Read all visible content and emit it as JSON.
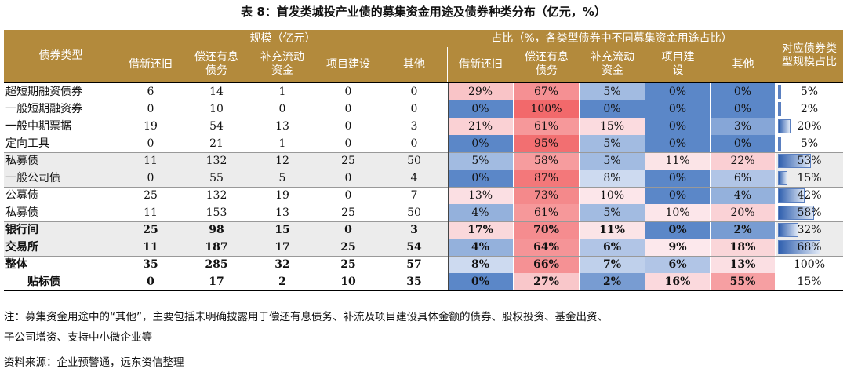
{
  "title": "表 8：首发类城投产业债的募集资金用途及债券种类分布（亿元，%）",
  "headers": {
    "type": "债券类型",
    "scale_group": "规模（亿元）",
    "pct_group": "占比（%，各类型债券中不同募集资金用途占比）",
    "share": "对应债券类型规模占比",
    "cols": [
      "借新还旧",
      "偿还有息债务",
      "补充流动资金",
      "项目建设",
      "其他"
    ]
  },
  "rows": [
    {
      "type": "超短期融资债券",
      "scale": [
        "6",
        "14",
        "1",
        "0",
        "0"
      ],
      "pct": [
        "29%",
        "67%",
        "5%",
        "0%",
        "0%"
      ],
      "pct_values": [
        29,
        67,
        5,
        0,
        0
      ],
      "share": "5%",
      "share_value": 5,
      "bold": false,
      "shade": false
    },
    {
      "type": "一般短期融资券",
      "scale": [
        "0",
        "10",
        "0",
        "0",
        "0"
      ],
      "pct": [
        "0%",
        "100%",
        "0%",
        "0%",
        "0%"
      ],
      "pct_values": [
        0,
        100,
        0,
        0,
        0
      ],
      "share": "2%",
      "share_value": 2,
      "bold": false,
      "shade": false
    },
    {
      "type": "一般中期票据",
      "scale": [
        "19",
        "54",
        "13",
        "0",
        "3"
      ],
      "pct": [
        "21%",
        "61%",
        "15%",
        "0%",
        "3%"
      ],
      "pct_values": [
        21,
        61,
        15,
        0,
        3
      ],
      "share": "20%",
      "share_value": 20,
      "bold": false,
      "shade": false
    },
    {
      "type": "定向工具",
      "scale": [
        "0",
        "21",
        "1",
        "0",
        "0"
      ],
      "pct": [
        "0%",
        "95%",
        "5%",
        "0%",
        "0%"
      ],
      "pct_values": [
        0,
        95,
        5,
        0,
        0
      ],
      "share": "5%",
      "share_value": 5,
      "bold": false,
      "shade": false
    },
    {
      "type": "私募债",
      "scale": [
        "11",
        "132",
        "12",
        "25",
        "50"
      ],
      "pct": [
        "5%",
        "58%",
        "5%",
        "11%",
        "22%"
      ],
      "pct_values": [
        5,
        58,
        5,
        11,
        22
      ],
      "share": "53%",
      "share_value": 53,
      "bold": false,
      "shade": true
    },
    {
      "type": "一般公司债",
      "scale": [
        "0",
        "55",
        "5",
        "0",
        "4"
      ],
      "pct": [
        "0%",
        "87%",
        "8%",
        "0%",
        "6%"
      ],
      "pct_values": [
        0,
        87,
        8,
        0,
        6
      ],
      "share": "15%",
      "share_value": 15,
      "bold": false,
      "shade": true
    },
    {
      "type": "公募债",
      "scale": [
        "25",
        "132",
        "19",
        "0",
        "7"
      ],
      "pct": [
        "13%",
        "73%",
        "10%",
        "0%",
        "4%"
      ],
      "pct_values": [
        13,
        73,
        10,
        0,
        4
      ],
      "share": "42%",
      "share_value": 42,
      "bold": false,
      "shade": false
    },
    {
      "type": "私募债",
      "scale": [
        "11",
        "153",
        "13",
        "25",
        "50"
      ],
      "pct": [
        "4%",
        "61%",
        "5%",
        "10%",
        "20%"
      ],
      "pct_values": [
        4,
        61,
        5,
        10,
        20
      ],
      "share": "58%",
      "share_value": 58,
      "bold": false,
      "shade": false
    },
    {
      "type": "银行间",
      "scale": [
        "25",
        "98",
        "15",
        "0",
        "3"
      ],
      "pct": [
        "17%",
        "70%",
        "11%",
        "0%",
        "2%"
      ],
      "pct_values": [
        17,
        70,
        11,
        0,
        2
      ],
      "share": "32%",
      "share_value": 32,
      "bold": true,
      "shade": true
    },
    {
      "type": "交易所",
      "scale": [
        "11",
        "187",
        "17",
        "25",
        "54"
      ],
      "pct": [
        "4%",
        "64%",
        "6%",
        "9%",
        "18%"
      ],
      "pct_values": [
        4,
        64,
        6,
        9,
        18
      ],
      "share": "68%",
      "share_value": 68,
      "bold": true,
      "shade": true
    },
    {
      "type": "整体",
      "scale": [
        "35",
        "285",
        "32",
        "25",
        "57"
      ],
      "pct": [
        "8%",
        "66%",
        "7%",
        "6%",
        "13%"
      ],
      "pct_values": [
        8,
        66,
        7,
        6,
        13
      ],
      "share": "100%",
      "share_value": null,
      "bold": true,
      "shade": false
    },
    {
      "type": "贴标债",
      "scale": [
        "0",
        "17",
        "2",
        "10",
        "35"
      ],
      "pct": [
        "0%",
        "27%",
        "2%",
        "16%",
        "55%"
      ],
      "pct_values": [
        0,
        27,
        2,
        16,
        55
      ],
      "share": "15%",
      "share_value": null,
      "bold": true,
      "shade": false,
      "indent": true
    }
  ],
  "note1": "注：募集资金用途中的“其他”，主要包括未明确披露用于偿还有息债务、补流及项目建设具体金额的债券、股权投资、基金出资、",
  "note2": "子公司增资、支持中小微企业等",
  "source": "资料来源：企业预警通，远东资信整理",
  "colors": {
    "header": "#b38a3c",
    "low": "#5b87c8",
    "high": "#f2696b",
    "mid": "#ffffff"
  }
}
